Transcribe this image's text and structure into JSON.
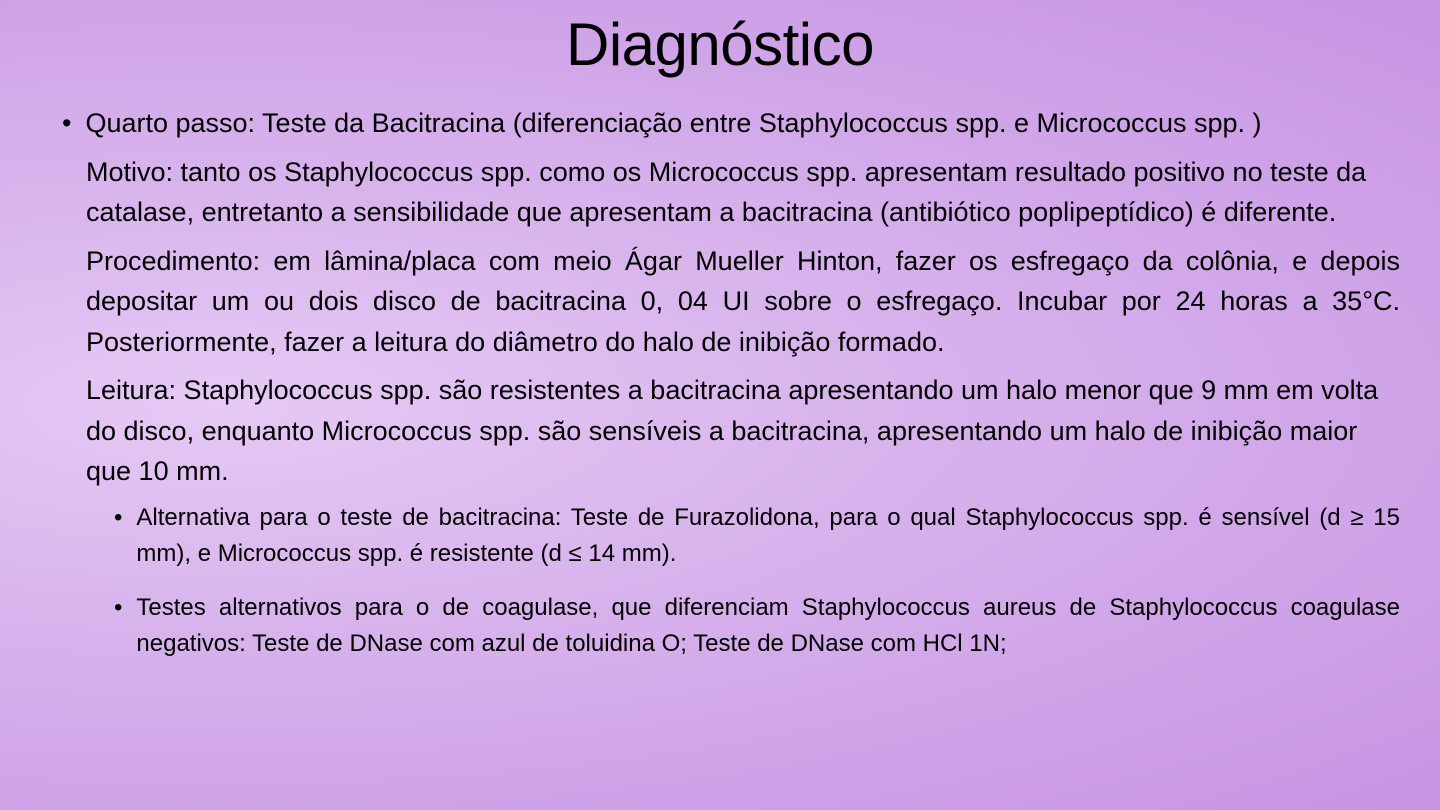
{
  "title": "Diagnóstico",
  "bullets": {
    "main": "Quarto passo: Teste da Bacitracina (diferenciação entre Staphylococcus spp. e Micrococcus spp. )"
  },
  "paragraphs": {
    "motivo": "Motivo: tanto os Staphylococcus spp. como os Micrococcus spp. apresentam resultado positivo no teste da catalase, entretanto a sensibilidade que apresentam a bacitracina (antibiótico poplipeptídico) é diferente.",
    "procedimento": "Procedimento: em lâmina/placa com meio Ágar Mueller Hinton, fazer os esfregaço da colônia, e depois depositar um ou dois disco de bacitracina 0, 04 UI sobre o esfregaço. Incubar por 24 horas a 35°C. Posteriormente, fazer a leitura do diâmetro do halo de inibição formado.",
    "leitura": "Leitura: Staphylococcus spp. são resistentes a bacitracina apresentando um halo menor que 9 mm em volta do disco, enquanto Micrococcus spp. são sensíveis a bacitracina, apresentando um halo de inibição maior que 10 mm."
  },
  "sub_bullets": {
    "alternativa": "Alternativa para o teste de bacitracina: Teste de Furazolidona, para o qual Staphylococcus spp. é sensível (d ≥ 15 mm), e Micrococcus spp. é resistente (d ≤ 14 mm).",
    "testes": "Testes alternativos para o de coagulase, que diferenciam Staphylococcus aureus de Staphylococcus coagulase negativos: Teste de DNase com azul de toluidina O; Teste de DNase com HCl 1N;"
  },
  "colors": {
    "background_center": "#e6c9f5",
    "background_edge": "#c794e3",
    "text": "#000000"
  },
  "typography": {
    "title_fontsize": 60,
    "body_fontsize": 27,
    "sub_fontsize": 24,
    "font_family": "Arial"
  }
}
